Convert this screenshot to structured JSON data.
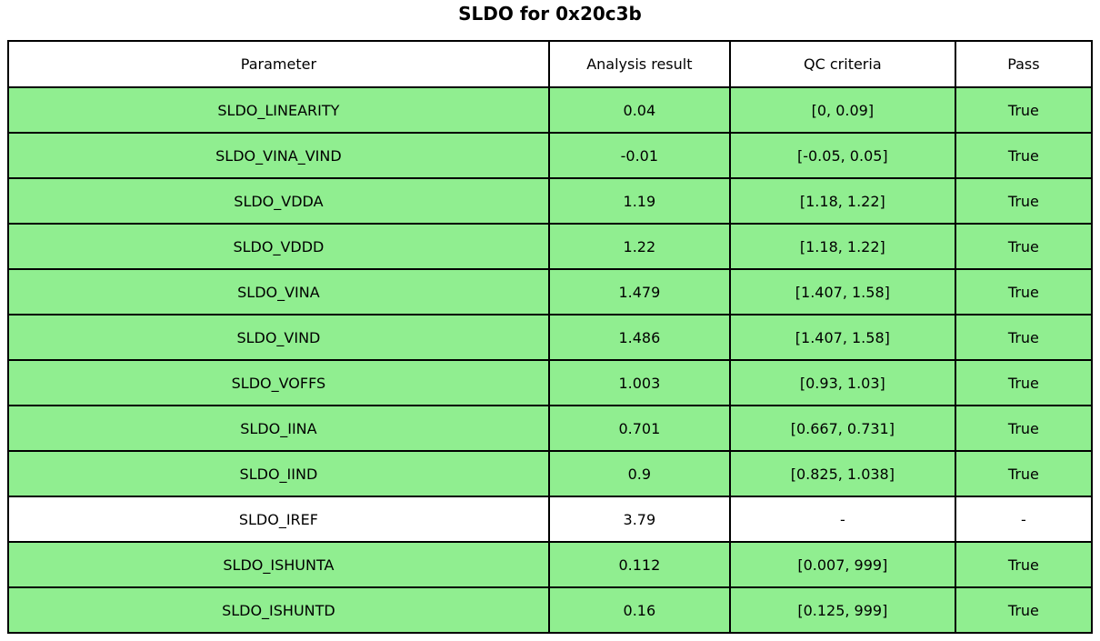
{
  "title": "SLDO for 0x20c3b",
  "colors": {
    "pass_green": "#90ee90",
    "row_white": "#ffffff",
    "border": "#000000",
    "text": "#000000"
  },
  "chart_data": {
    "type": "table",
    "title": "SLDO for 0x20c3b",
    "columns": [
      "Parameter",
      "Analysis result",
      "QC criteria",
      "Pass"
    ],
    "rows": [
      {
        "parameter": "SLDO_LINEARITY",
        "analysis_result": "0.04",
        "qc_criteria": "[0, 0.09]",
        "pass": "True",
        "row_color": "green"
      },
      {
        "parameter": "SLDO_VINA_VIND",
        "analysis_result": "-0.01",
        "qc_criteria": "[-0.05, 0.05]",
        "pass": "True",
        "row_color": "green"
      },
      {
        "parameter": "SLDO_VDDA",
        "analysis_result": "1.19",
        "qc_criteria": "[1.18, 1.22]",
        "pass": "True",
        "row_color": "green"
      },
      {
        "parameter": "SLDO_VDDD",
        "analysis_result": "1.22",
        "qc_criteria": "[1.18, 1.22]",
        "pass": "True",
        "row_color": "green"
      },
      {
        "parameter": "SLDO_VINA",
        "analysis_result": "1.479",
        "qc_criteria": "[1.407, 1.58]",
        "pass": "True",
        "row_color": "green"
      },
      {
        "parameter": "SLDO_VIND",
        "analysis_result": "1.486",
        "qc_criteria": "[1.407, 1.58]",
        "pass": "True",
        "row_color": "green"
      },
      {
        "parameter": "SLDO_VOFFS",
        "analysis_result": "1.003",
        "qc_criteria": "[0.93, 1.03]",
        "pass": "True",
        "row_color": "green"
      },
      {
        "parameter": "SLDO_IINA",
        "analysis_result": "0.701",
        "qc_criteria": "[0.667, 0.731]",
        "pass": "True",
        "row_color": "green"
      },
      {
        "parameter": "SLDO_IIND",
        "analysis_result": "0.9",
        "qc_criteria": "[0.825, 1.038]",
        "pass": "True",
        "row_color": "green"
      },
      {
        "parameter": "SLDO_IREF",
        "analysis_result": "3.79",
        "qc_criteria": "-",
        "pass": "-",
        "row_color": "white"
      },
      {
        "parameter": "SLDO_ISHUNTA",
        "analysis_result": "0.112",
        "qc_criteria": "[0.007, 999]",
        "pass": "True",
        "row_color": "green"
      },
      {
        "parameter": "SLDO_ISHUNTD",
        "analysis_result": "0.16",
        "qc_criteria": "[0.125, 999]",
        "pass": "True",
        "row_color": "green"
      }
    ]
  }
}
